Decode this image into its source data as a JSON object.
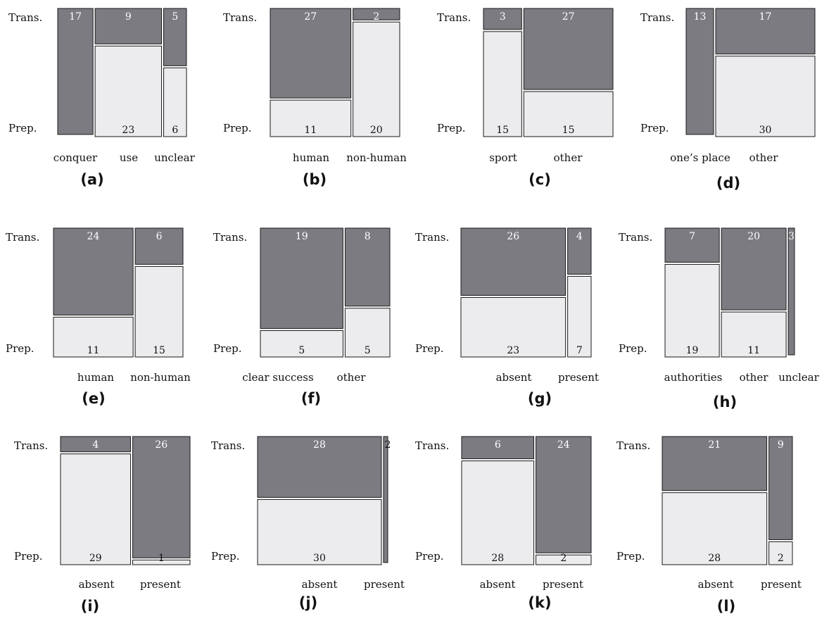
{
  "row_labels": {
    "top": "Trans.",
    "bottom": "Prep."
  },
  "colors": {
    "trans": "#7c7b82",
    "prep": "#ececee",
    "trans_text": "#ffffff",
    "prep_text": "#111111",
    "stroke": "#1a1a1a"
  },
  "chart_data": [
    {
      "type": "mosaic",
      "panel_label": "(a)",
      "categories": [
        "conquer",
        "use",
        "unclear"
      ],
      "series": [
        {
          "name": "Trans.",
          "values": [
            17,
            9,
            5
          ]
        },
        {
          "name": "Prep.",
          "values": [
            0,
            23,
            6
          ]
        }
      ]
    },
    {
      "type": "mosaic",
      "panel_label": "(b)",
      "categories": [
        "human",
        "non-human"
      ],
      "series": [
        {
          "name": "Trans.",
          "values": [
            27,
            2
          ]
        },
        {
          "name": "Prep.",
          "values": [
            11,
            20
          ]
        }
      ]
    },
    {
      "type": "mosaic",
      "panel_label": "(c)",
      "categories": [
        "sport",
        "other"
      ],
      "series": [
        {
          "name": "Trans.",
          "values": [
            3,
            27
          ]
        },
        {
          "name": "Prep.",
          "values": [
            15,
            15
          ]
        }
      ]
    },
    {
      "type": "mosaic",
      "panel_label": "(d)",
      "categories": [
        "one’s place",
        "other"
      ],
      "series": [
        {
          "name": "Trans.",
          "values": [
            13,
            17
          ]
        },
        {
          "name": "Prep.",
          "values": [
            0,
            30
          ]
        }
      ]
    },
    {
      "type": "mosaic",
      "panel_label": "(e)",
      "categories": [
        "human",
        "non-human"
      ],
      "series": [
        {
          "name": "Trans.",
          "values": [
            24,
            6
          ]
        },
        {
          "name": "Prep.",
          "values": [
            11,
            15
          ]
        }
      ]
    },
    {
      "type": "mosaic",
      "panel_label": "(f)",
      "categories": [
        "clear success",
        "other"
      ],
      "series": [
        {
          "name": "Trans.",
          "values": [
            19,
            8
          ]
        },
        {
          "name": "Prep.",
          "values": [
            5,
            5
          ]
        }
      ]
    },
    {
      "type": "mosaic",
      "panel_label": "(g)",
      "categories": [
        "absent",
        "present"
      ],
      "series": [
        {
          "name": "Trans.",
          "values": [
            26,
            4
          ]
        },
        {
          "name": "Prep.",
          "values": [
            23,
            7
          ]
        }
      ]
    },
    {
      "type": "mosaic",
      "panel_label": "(h)",
      "categories": [
        "authorities",
        "other",
        "unclear"
      ],
      "series": [
        {
          "name": "Trans.",
          "values": [
            7,
            20,
            3
          ]
        },
        {
          "name": "Prep.",
          "values": [
            19,
            11,
            0
          ]
        }
      ]
    },
    {
      "type": "mosaic",
      "panel_label": "(i)",
      "categories": [
        "absent",
        "present"
      ],
      "series": [
        {
          "name": "Trans.",
          "values": [
            4,
            26
          ]
        },
        {
          "name": "Prep.",
          "values": [
            29,
            1
          ]
        }
      ]
    },
    {
      "type": "mosaic",
      "panel_label": "(j)",
      "categories": [
        "absent",
        "present"
      ],
      "series": [
        {
          "name": "Trans.",
          "values": [
            28,
            2
          ]
        },
        {
          "name": "Prep.",
          "values": [
            30,
            0
          ]
        }
      ]
    },
    {
      "type": "mosaic",
      "panel_label": "(k)",
      "categories": [
        "absent",
        "present"
      ],
      "series": [
        {
          "name": "Trans.",
          "values": [
            6,
            24
          ]
        },
        {
          "name": "Prep.",
          "values": [
            28,
            2
          ]
        }
      ]
    },
    {
      "type": "mosaic",
      "panel_label": "(l)",
      "categories": [
        "absent",
        "present"
      ],
      "series": [
        {
          "name": "Trans.",
          "values": [
            21,
            9
          ]
        },
        {
          "name": "Prep.",
          "values": [
            28,
            2
          ]
        }
      ]
    }
  ]
}
